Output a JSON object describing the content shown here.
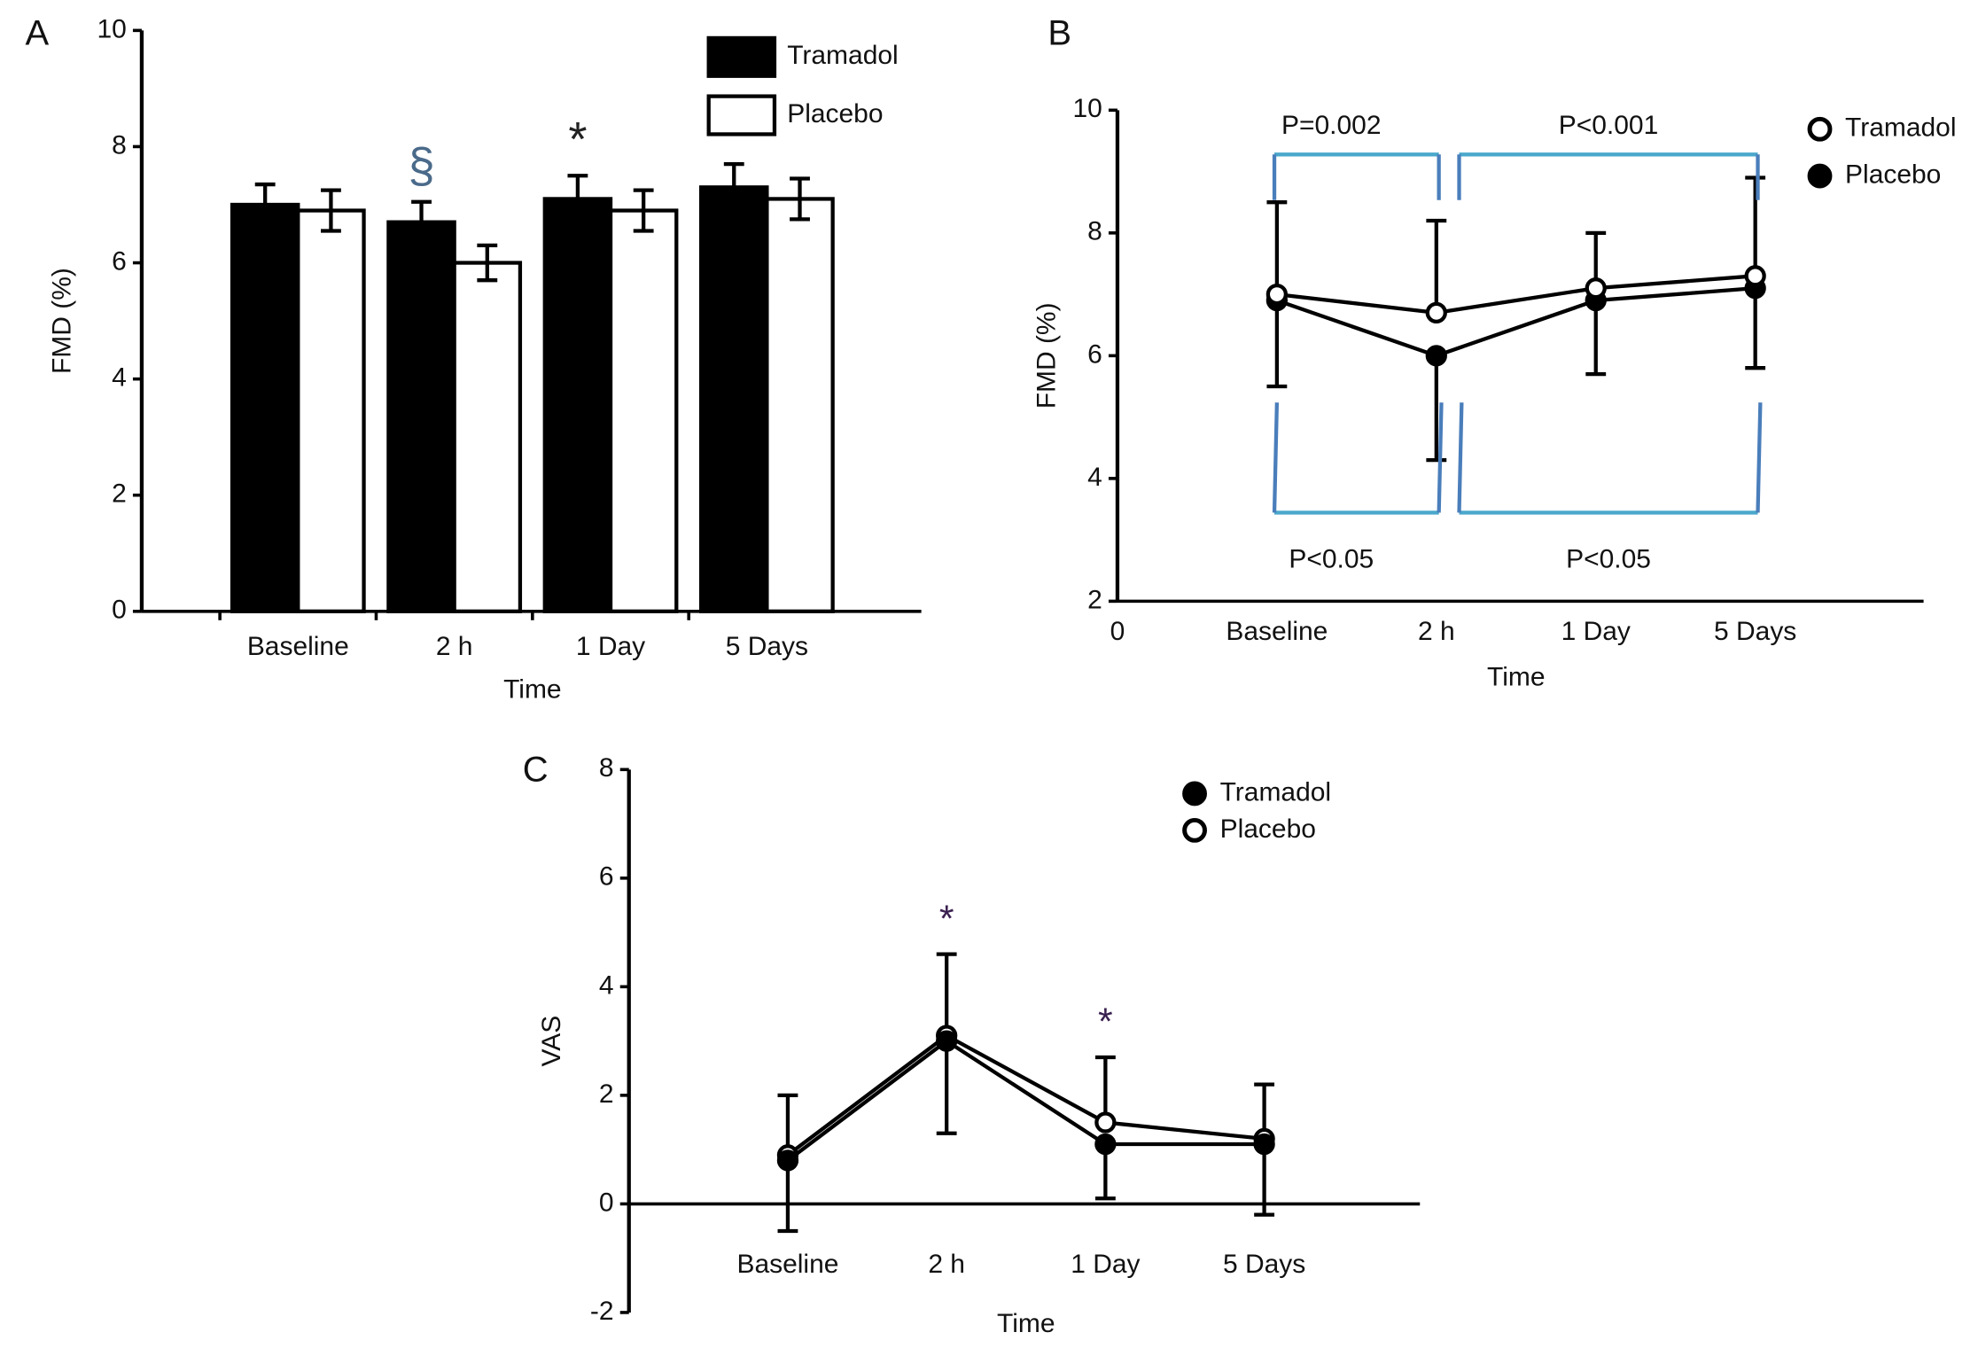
{
  "chart_data": [
    {
      "type": "bar",
      "panel": "A",
      "categories": [
        "Baseline",
        "2 h",
        "1 Day",
        "5 Days"
      ],
      "series": [
        {
          "name": "Tramadol",
          "color": "#000000",
          "values": [
            7.0,
            6.7,
            7.1,
            7.3
          ],
          "errors": [
            0.35,
            0.35,
            0.4,
            0.4
          ]
        },
        {
          "name": "Placebo",
          "color": "#ffffff",
          "values": [
            6.9,
            6.0,
            6.9,
            7.1
          ],
          "errors": [
            0.35,
            0.3,
            0.35,
            0.35
          ]
        }
      ],
      "ylim": [
        0,
        10
      ],
      "yticks": [
        0,
        2,
        4,
        6,
        8,
        10
      ],
      "xlabel": "Time",
      "ylabel": "FMD (%)",
      "annotations": [
        {
          "text": "§",
          "category": 1,
          "series": 0
        },
        {
          "text": "*",
          "category": 2,
          "series": 0
        }
      ],
      "legend": "upper right"
    },
    {
      "type": "line",
      "panel": "B",
      "categories": [
        "0",
        "Baseline",
        "2 h",
        "1 Day",
        "5 Days"
      ],
      "series": [
        {
          "name": "Tramadol",
          "color": "#ffffff",
          "values": [
            null,
            7.0,
            6.7,
            7.1,
            7.3
          ],
          "errors": [
            null,
            1.5,
            1.5,
            0.9,
            1.6
          ],
          "error_bars": "upper"
        },
        {
          "name": "Placebo",
          "color": "#000000",
          "values": [
            null,
            6.9,
            6.0,
            6.9,
            7.1
          ],
          "errors": [
            null,
            1.4,
            1.7,
            1.2,
            1.3
          ],
          "error_bars": "lower"
        }
      ],
      "ylim": [
        2,
        10
      ],
      "yticks": [
        2,
        4,
        6,
        8,
        10
      ],
      "xlabel": "Time",
      "ylabel": "FMD (%)",
      "brackets": [
        {
          "label": "P=0.002",
          "from": 1,
          "to": 2,
          "side": "top"
        },
        {
          "label": "P<0.001",
          "from": 2,
          "to": 4,
          "side": "top"
        },
        {
          "label": "P<0.05",
          "from": 1,
          "to": 2,
          "side": "bottom"
        },
        {
          "label": "P<0.05",
          "from": 2,
          "to": 4,
          "side": "bottom"
        }
      ],
      "bracket_color": "#4aa8cc",
      "legend": "upper right"
    },
    {
      "type": "line",
      "panel": "C",
      "categories": [
        null,
        "Baseline",
        "2 h",
        "1 Day",
        "5 Days"
      ],
      "series": [
        {
          "name": "Tramadol",
          "color": "#000000",
          "values": [
            null,
            0.8,
            3.0,
            1.1,
            1.1
          ],
          "errors": [
            null,
            1.3,
            1.7,
            1.0,
            1.3
          ],
          "error_bars": "lower"
        },
        {
          "name": "Placebo",
          "color": "#ffffff",
          "values": [
            null,
            0.9,
            3.1,
            1.5,
            1.2
          ],
          "errors": [
            null,
            1.1,
            1.5,
            1.2,
            1.0
          ],
          "error_bars": "upper"
        }
      ],
      "ylim": [
        -2,
        8
      ],
      "yticks": [
        -2,
        0,
        2,
        4,
        6,
        8
      ],
      "xlabel": "Time",
      "ylabel": "VAS",
      "annotations": [
        {
          "text": "*",
          "category": 2,
          "series": 1
        },
        {
          "text": "*",
          "category": 3,
          "series": 1
        }
      ],
      "legend": "upper right"
    }
  ]
}
